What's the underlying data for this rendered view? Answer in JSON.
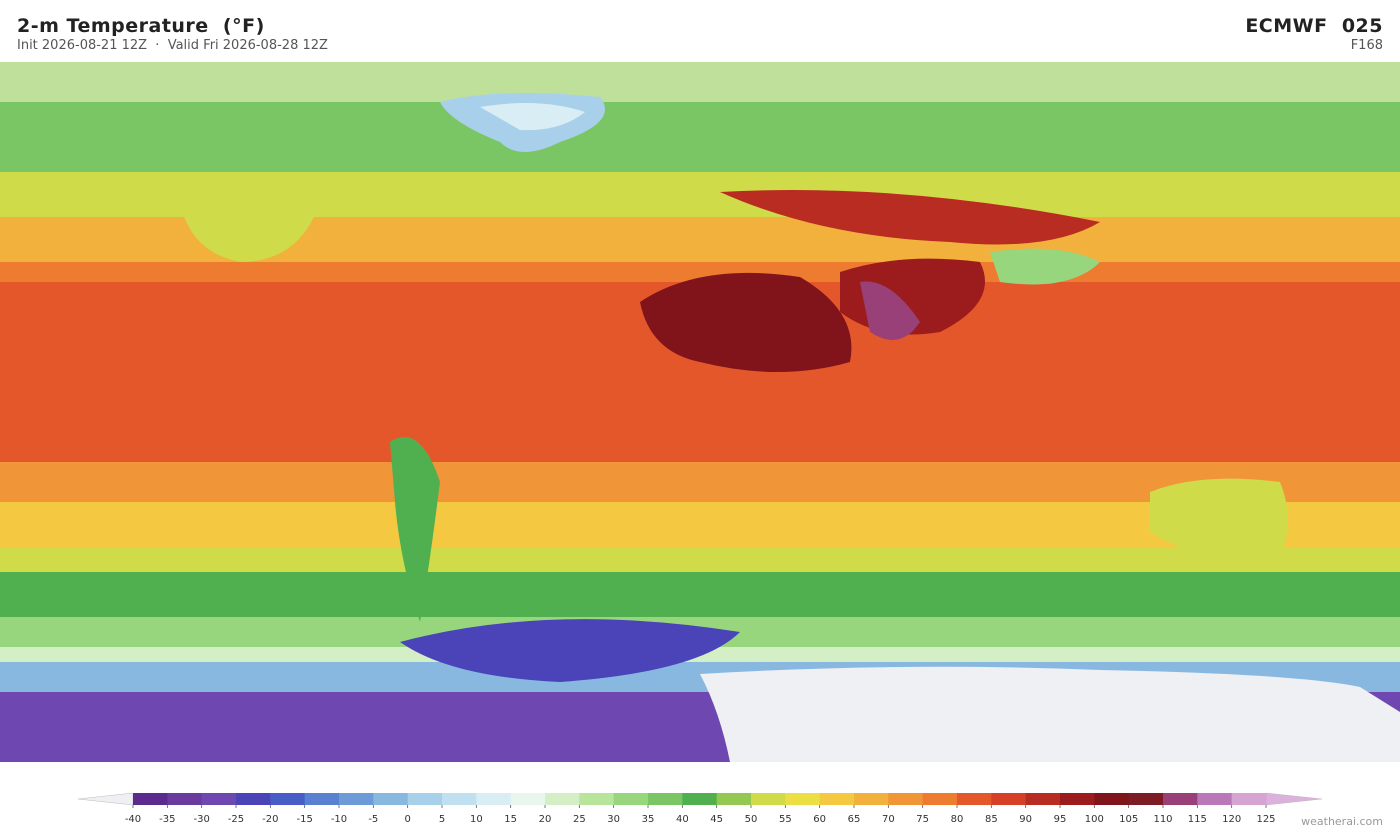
{
  "header": {
    "title": "2-m Temperature  (°F)",
    "subtitle": "Init 2026-08-21 12Z  ·  Valid Fri 2026-08-28 12Z",
    "model": "ECMWF  025",
    "forecast_hour": "F168"
  },
  "colorbar": {
    "ticks": [
      -40,
      -35,
      -30,
      -25,
      -20,
      -15,
      -10,
      -5,
      0,
      5,
      10,
      15,
      20,
      25,
      30,
      35,
      40,
      45,
      50,
      55,
      60,
      65,
      70,
      75,
      80,
      85,
      90,
      95,
      100,
      105,
      110,
      115,
      120,
      125
    ],
    "colors": [
      "#5b2a8c",
      "#6a3a9c",
      "#6e48b0",
      "#4a44b8",
      "#4a5cc8",
      "#5a80d2",
      "#6e9ad8",
      "#88b8e0",
      "#a8d0ea",
      "#c0e0f0",
      "#d8eef4",
      "#e8f6ee",
      "#d4efc6",
      "#b8e49c",
      "#98d67e",
      "#7ac664",
      "#50b050",
      "#94c850",
      "#cfdb48",
      "#ecdf44",
      "#f4c840",
      "#f2b03c",
      "#f09538",
      "#ee7c30",
      "#e4572a",
      "#d64026",
      "#b82c22",
      "#9c1c1e",
      "#80141a",
      "#7c1c24",
      "#9a4078",
      "#bb78b8",
      "#d6a4d2"
    ],
    "under_color": "#f0f0f4",
    "over_color": "#dcb2dc"
  },
  "watermark": "weatherai.com"
}
